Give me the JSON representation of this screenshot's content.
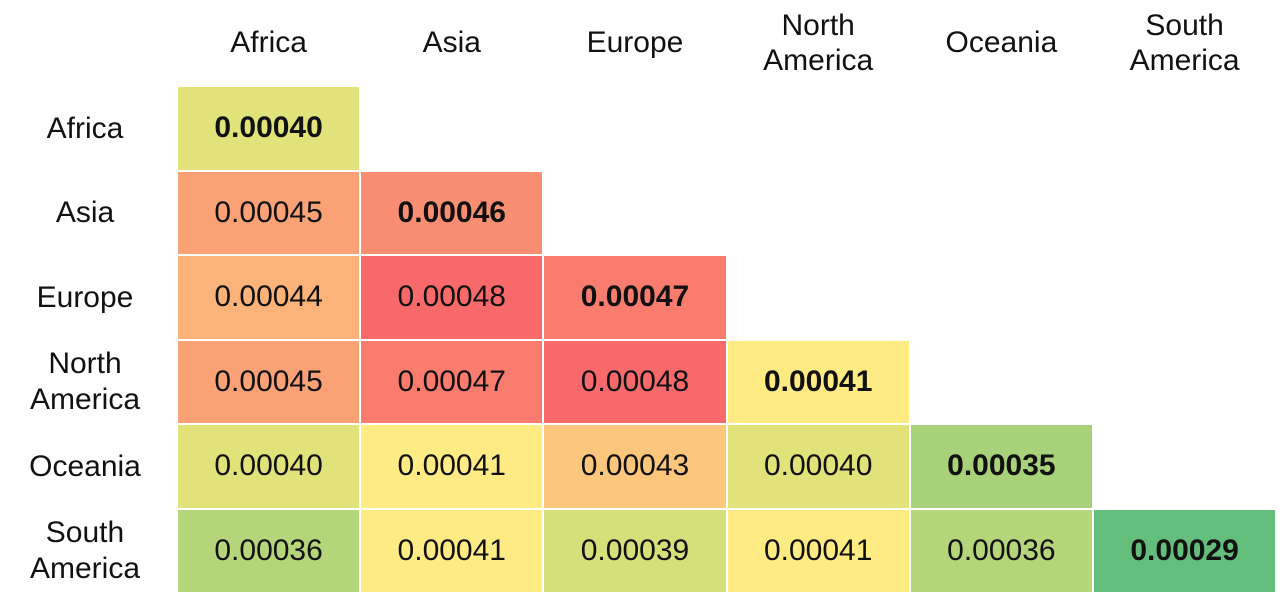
{
  "chart_data": {
    "type": "heatmap",
    "title": "",
    "xlabel": "",
    "ylabel": "",
    "columns": [
      "Africa",
      "Asia",
      "Europe",
      "North\nAmerica",
      "Oceania",
      "South\nAmerica"
    ],
    "rows": [
      "Africa",
      "Asia",
      "Europe",
      "North\nAmerica",
      "Oceania",
      "South\nAmerica"
    ],
    "matrix": [
      [
        "0.00040",
        null,
        null,
        null,
        null,
        null
      ],
      [
        "0.00045",
        "0.00046",
        null,
        null,
        null,
        null
      ],
      [
        "0.00044",
        "0.00048",
        "0.00047",
        null,
        null,
        null
      ],
      [
        "0.00045",
        "0.00047",
        "0.00048",
        "0.00041",
        null,
        null
      ],
      [
        "0.00040",
        "0.00041",
        "0.00043",
        "0.00040",
        "0.00035",
        null
      ],
      [
        "0.00036",
        "0.00041",
        "0.00039",
        "0.00041",
        "0.00036",
        "0.00029"
      ]
    ],
    "diagonal_bold": true,
    "lower_triangle_only": true,
    "color_scale": {
      "stops": [
        {
          "value": 0.00029,
          "color": "#63be7b"
        },
        {
          "value": 0.0004,
          "color": "#e2e27a"
        },
        {
          "value": 0.00041,
          "color": "#ffeb84"
        },
        {
          "value": 0.00048,
          "color": "#f8696b"
        }
      ]
    },
    "cell_border_color": "#ffffff"
  }
}
